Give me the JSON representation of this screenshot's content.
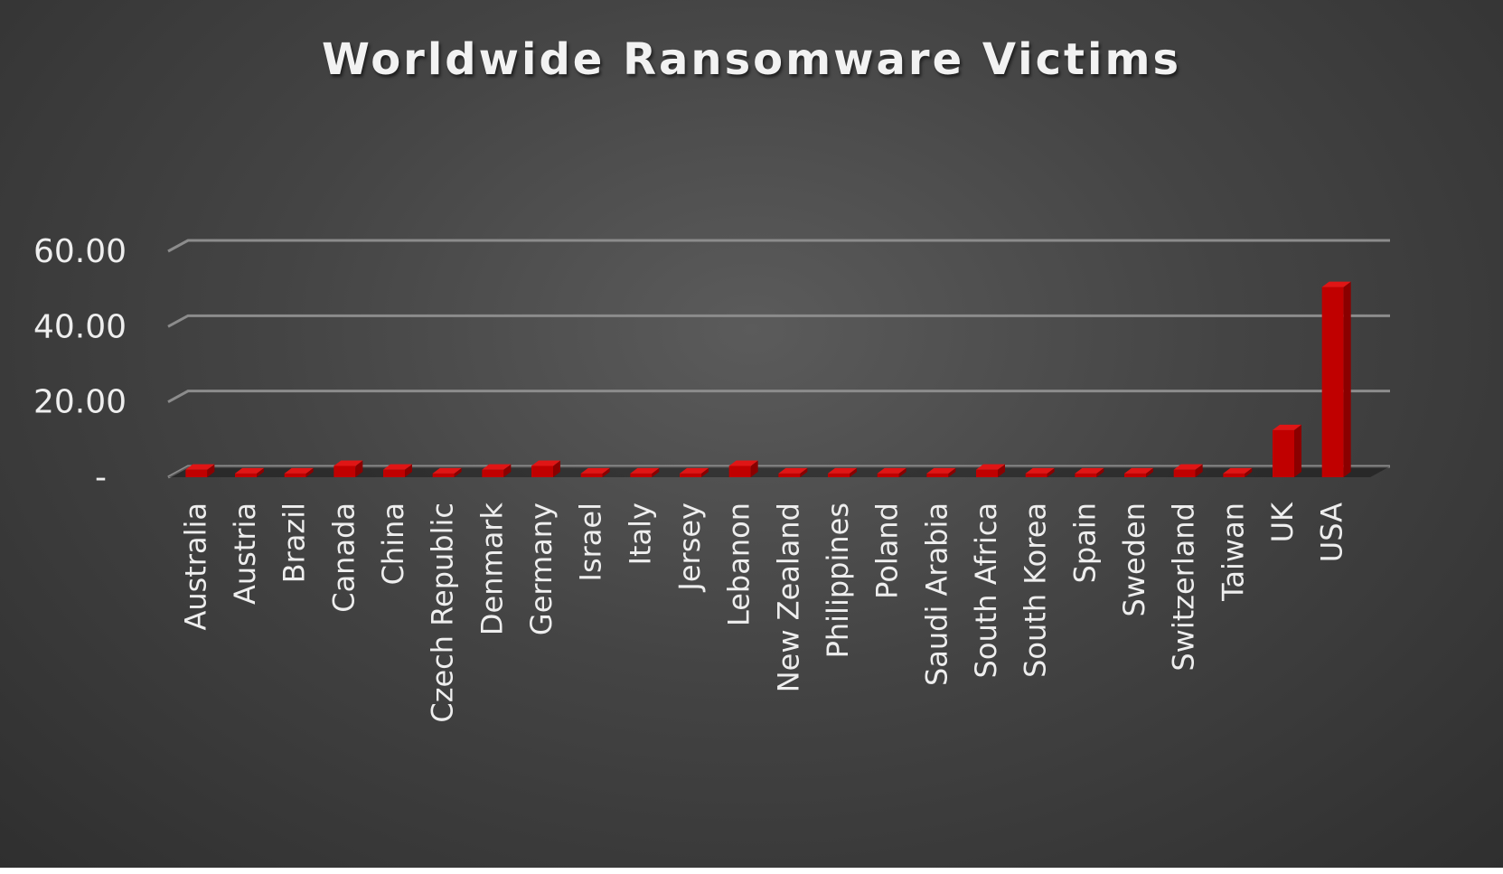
{
  "chart_data": {
    "type": "bar",
    "title": "Worldwide Ransomware Victims",
    "xlabel": "",
    "ylabel": "",
    "ylim": [
      0,
      60
    ],
    "yticks": [
      {
        "value": 0,
        "label": "-"
      },
      {
        "value": 20,
        "label": "20.00"
      },
      {
        "value": 40,
        "label": "40.00"
      },
      {
        "value": 60,
        "label": "60.00"
      }
    ],
    "grid": true,
    "legend": "none",
    "categories": [
      "Australia",
      "Austria",
      "Brazil",
      "Canada",
      "China",
      "Czech Republic",
      "Denmark",
      "Germany",
      "Israel",
      "Italy",
      "Jersey",
      "Lebanon",
      "New Zealand",
      "Philippines",
      "Poland",
      "Saudi Arabia",
      "South Africa",
      "South Korea",
      "Spain",
      "Sweden",
      "Switzerland",
      "Taiwan",
      "UK",
      "USA"
    ],
    "values": [
      2,
      1,
      1,
      3,
      2,
      1,
      2,
      3,
      1,
      1,
      1,
      3,
      1,
      1,
      1,
      1,
      2,
      1,
      1,
      1,
      2,
      1,
      12.5,
      50.5
    ],
    "colors": {
      "bar_front": "#c00000",
      "bar_side": "#8a0000",
      "bar_top": "#e01515",
      "gridline": "#8c8c8c",
      "text": "#eeeeee"
    }
  }
}
